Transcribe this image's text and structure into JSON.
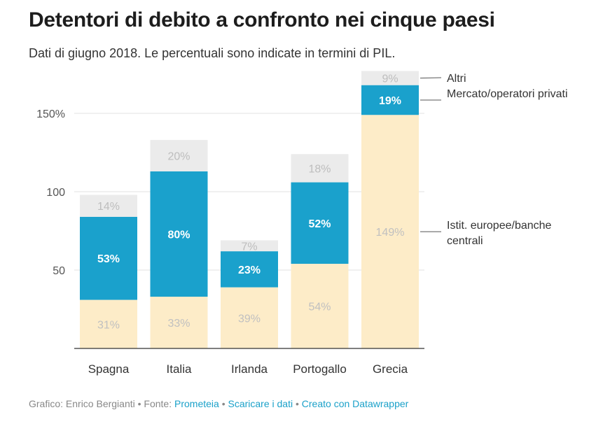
{
  "header": {
    "title": "Detentori di debito a confronto nei cinque paesi",
    "subtitle": "Dati di giugno 2018. Le percentuali sono indicate in termini di PIL."
  },
  "chart_data": {
    "type": "bar",
    "stacked": true,
    "categories": [
      "Spagna",
      "Italia",
      "Irlanda",
      "Portogallo",
      "Grecia"
    ],
    "series": [
      {
        "name": "Istit. europee/banche centrali",
        "values": [
          31,
          33,
          39,
          54,
          149
        ],
        "labels": [
          "31%",
          "33%",
          "39%",
          "54%",
          "149%"
        ],
        "color": "#fdecc8",
        "label_color": "#c0c0c0"
      },
      {
        "name": "Mercato/operatori privati",
        "values": [
          53,
          80,
          23,
          52,
          19
        ],
        "labels": [
          "53%",
          "80%",
          "23%",
          "52%",
          "19%"
        ],
        "color": "#1aa1cc",
        "label_color": "#ffffff"
      },
      {
        "name": "Altri",
        "values": [
          14,
          20,
          7,
          18,
          9
        ],
        "labels": [
          "14%",
          "20%",
          "7%",
          "18%",
          "9%"
        ],
        "color": "#ebebeb",
        "label_color": "#bdbdbd"
      }
    ],
    "yticks": [
      {
        "value": 50,
        "label": "50"
      },
      {
        "value": 100,
        "label": "100"
      },
      {
        "value": 150,
        "label": "150%"
      }
    ],
    "ylim": [
      0,
      180
    ],
    "grid": true,
    "legend_position": "right, labelled inline next to the last bar"
  },
  "footer": {
    "credit": "Grafico: Enrico Bergianti",
    "source_prefix": "• Fonte:",
    "source": "Prometeia",
    "download": "Scaricare i dati",
    "made_with": "Creato con Datawrapper",
    "separator": "•"
  }
}
